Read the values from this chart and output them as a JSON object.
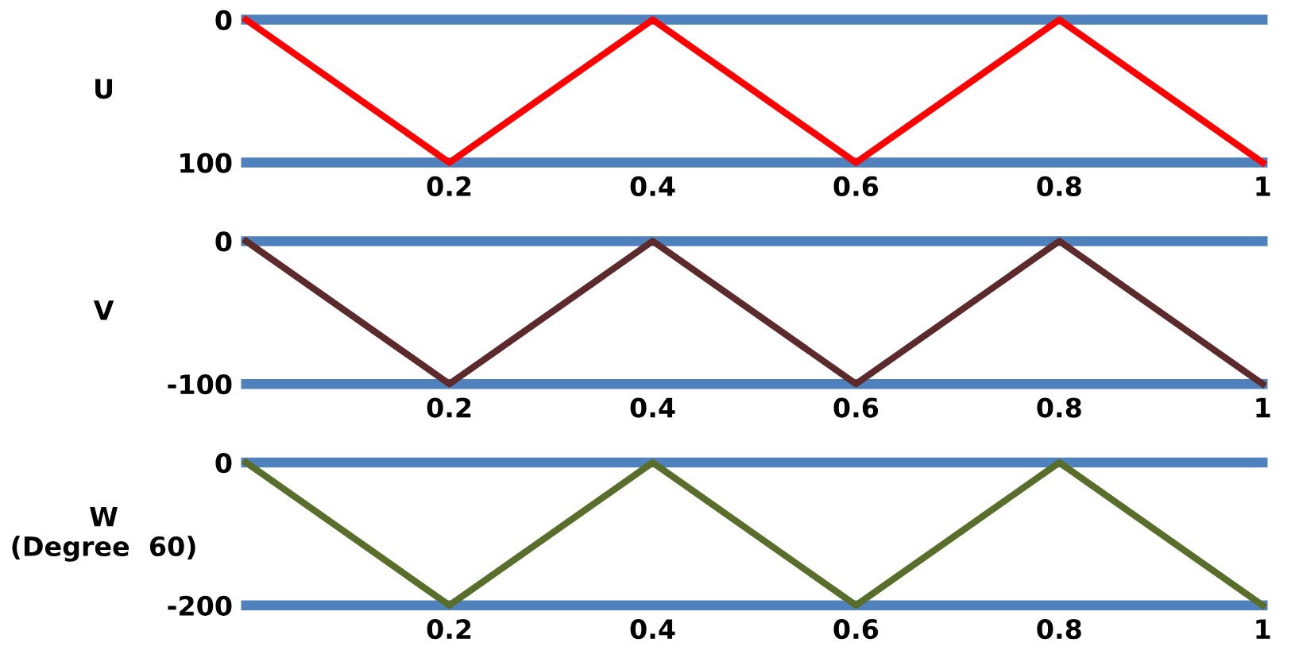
{
  "chart_data": [
    {
      "type": "line",
      "ylabel": "U",
      "x": [
        0,
        0.2,
        0.4,
        0.6,
        0.8,
        1
      ],
      "series": [
        {
          "color": "#ff0000",
          "values": [
            0,
            100,
            0,
            100,
            0,
            100
          ]
        }
      ],
      "xlim": [
        0,
        1
      ],
      "xticks": [
        0.2,
        0.4,
        0.6,
        0.8,
        1
      ],
      "ylim": [
        100,
        0
      ],
      "yticks": [
        0,
        100
      ],
      "grid": false,
      "legend": false,
      "marker": "none",
      "line_style": "solid"
    },
    {
      "type": "line",
      "ylabel": "V",
      "x": [
        0,
        0.2,
        0.4,
        0.6,
        0.8,
        1
      ],
      "series": [
        {
          "color": "#5c2a2a",
          "values": [
            0,
            -100,
            0,
            -100,
            0,
            -100
          ]
        }
      ],
      "xlim": [
        0,
        1
      ],
      "xticks": [
        0.2,
        0.4,
        0.6,
        0.8,
        1
      ],
      "ylim": [
        -100,
        0
      ],
      "yticks": [
        0,
        -100
      ],
      "grid": false,
      "legend": false,
      "marker": "none",
      "line_style": "solid"
    },
    {
      "type": "line",
      "ylabel": "W\n(Degree  60)",
      "x": [
        0,
        0.2,
        0.4,
        0.6,
        0.8,
        1
      ],
      "series": [
        {
          "color": "#5a6e2c",
          "values": [
            0,
            -200,
            0,
            -200,
            0,
            -200
          ]
        }
      ],
      "xlim": [
        0,
        1
      ],
      "xticks": [
        0.2,
        0.4,
        0.6,
        0.8,
        1
      ],
      "ylim": [
        -200,
        0
      ],
      "yticks": [
        0,
        -200
      ],
      "grid": false,
      "legend": false,
      "marker": "none",
      "line_style": "solid"
    }
  ]
}
